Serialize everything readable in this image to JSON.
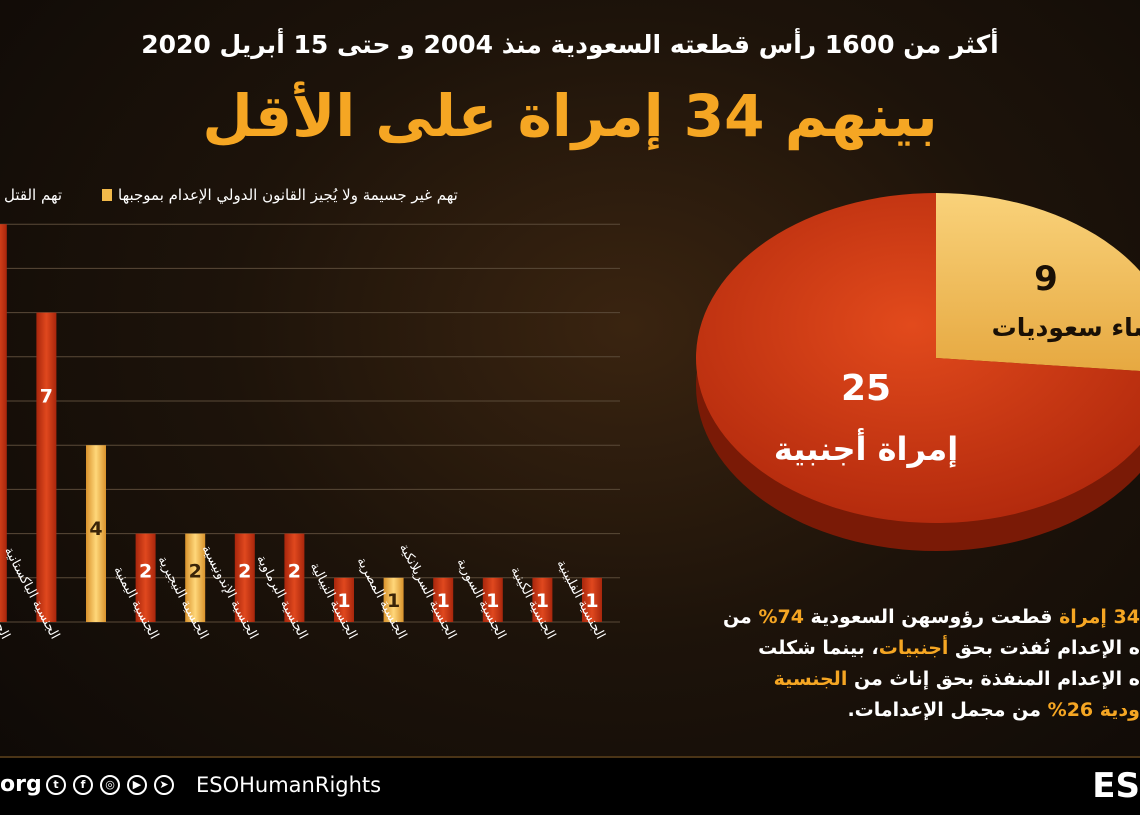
{
  "header": {
    "subtitle": "أكثر من 1600 رأس قطعته السعودية منذ 2004 و حتى 15 أبريل 2020",
    "headline": "بينهم 34 إمراة على الأقل"
  },
  "colors": {
    "accent": "#f5a623",
    "bar_red": "#d9441c",
    "bar_yellow": "#f2b94a",
    "pie_red": "#c8310f",
    "pie_yellow": "#f2c366"
  },
  "chart_data": [
    {
      "type": "bar",
      "legend_position": "top",
      "grid": true,
      "ylim": [
        0,
        9
      ],
      "legend": [
        {
          "label": "تهم غير جسيمة ولا يُجيز القانون الدولي الإعدام بموجبها",
          "color": "#f2b94a"
        },
        {
          "label": "تهم القتل",
          "color": "#d9441c"
        }
      ],
      "bars": [
        {
          "category": "الجنسية الفلبينية",
          "value": 1,
          "color": "#d9441c",
          "label": "1"
        },
        {
          "category": "الجنسية الكينية",
          "value": 1,
          "color": "#d9441c",
          "label": "1"
        },
        {
          "category": "الجنسية السورية",
          "value": 1,
          "color": "#d9441c",
          "label": "1"
        },
        {
          "category": "الجنسية السريلانكية",
          "value": 1,
          "color": "#d9441c",
          "label": "1"
        },
        {
          "category": "الجنسية المصرية",
          "value": 1,
          "color": "#f2b94a",
          "label": "1"
        },
        {
          "category": "الجنسية النيبالية",
          "value": 1,
          "color": "#d9441c",
          "label": "1"
        },
        {
          "category": "الجنسية البرماوية",
          "value": 2,
          "color": "#d9441c",
          "label": "2"
        },
        {
          "category": "الجنسية الإندونيسية",
          "value": 2,
          "color": "#d9441c",
          "label": "2"
        },
        {
          "category": "الجنسية النيجيرية",
          "value": 2,
          "color": "#f2b94a",
          "label": "2"
        },
        {
          "category": "الجنسية اليمنية",
          "value": 2,
          "color": "#d9441c",
          "label": "2"
        },
        {
          "category": "",
          "value": 4,
          "color": "#f2b94a",
          "label": "4"
        },
        {
          "category": "الجنسية الباكستانية",
          "value": 7,
          "color": "#d9441c",
          "label": "7"
        },
        {
          "category": "الجنسية ا",
          "value": 9,
          "color": "#d9441c",
          "label": ")"
        }
      ]
    },
    {
      "type": "pie",
      "slices": [
        {
          "value": 9,
          "value_label": "9",
          "label": "نساء سعوديات",
          "color": "#f2c366"
        },
        {
          "value": 25,
          "value_label": "25",
          "label": "إمراة أجنبية",
          "color": "#c8310f"
        }
      ]
    }
  ],
  "paragraph": {
    "p1": "34 إمراة",
    "p2": " قطعت رؤوسهن السعودية ",
    "p3": "74%",
    "p4": " من",
    "p5": "ه الإعدام نُفذت بحق ",
    "p6": "أجنبيات",
    "p7": "، بينما شكلت",
    "p8": "ه الإعدام المنفذة بحق إناث من ",
    "p9": "الجنسية",
    "p10": "ودية 26%",
    "p11": " من مجمل الإعدامات."
  },
  "footer": {
    "domain": "org",
    "handle": "ESOHumanRights",
    "logo": "ES",
    "icons": [
      "twitter-icon",
      "facebook-icon",
      "instagram-icon",
      "youtube-icon",
      "telegram-icon"
    ],
    "icon_glyphs": [
      "t",
      "f",
      "◎",
      "▶",
      "➤"
    ]
  }
}
